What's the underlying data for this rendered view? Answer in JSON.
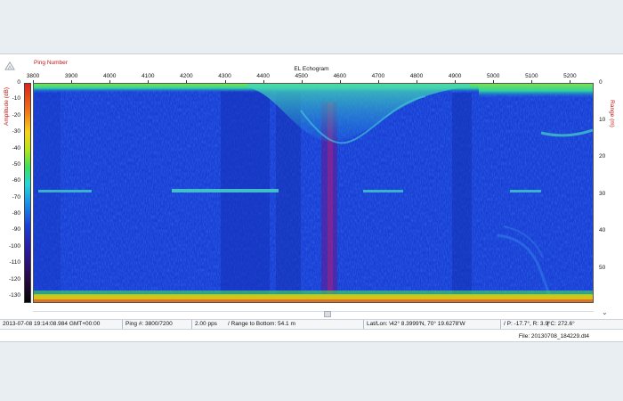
{
  "app": {
    "ping_number_label": "Ping Number",
    "title": "EL Echogram",
    "amplitude_label": "Amplitude (dB)",
    "range_label": "Range (m)",
    "logo_icon": "app-logo-icon"
  },
  "x_axis": {
    "ticks": [
      "3800",
      "3900",
      "4000",
      "4100",
      "4200",
      "4300",
      "4400",
      "4500",
      "4600",
      "4700",
      "4800",
      "4900",
      "5000",
      "5100",
      "5200"
    ]
  },
  "left_axis": {
    "ticks": [
      "0",
      "-10",
      "-20",
      "-30",
      "-40",
      "-50",
      "-60",
      "-70",
      "-80",
      "-90",
      "-100",
      "-110",
      "-120",
      "-130"
    ]
  },
  "right_axis": {
    "ticks": [
      "0",
      "10",
      "20",
      "30",
      "40",
      "50"
    ]
  },
  "colorbar": {
    "colors": [
      "#d7261e",
      "#f0701a",
      "#f7d21c",
      "#b8e51a",
      "#3fe05a",
      "#25d7d9",
      "#1a8ee8",
      "#1b3fd6",
      "#2a1aa0",
      "#2a0b4a",
      "#050505"
    ]
  },
  "echogram": {
    "background": "#1b3fd6",
    "surface_band_color": "#38d47a",
    "bottom_band_color": "#d8c21a",
    "layer_color": "#46d5c8"
  },
  "status": {
    "timestamp": "2013-07-08  19:14:08.984 GMT+00:00",
    "ping": "Ping #: 3800/7200",
    "rate": "2.00 pps",
    "range_to_bottom": "/ Range to Bottom: 54.1 m",
    "latlon": "Lat/Lon: \\42° 8.3999'N, 70° 19.6278'W",
    "attitude": "/ P: -17.7°, R: 3.9°",
    "heading": "| C: 272.6°"
  },
  "file": {
    "label": "File:  20130708_184229.dt4"
  },
  "scroll": {
    "collapse_icon": "collapse-icon"
  }
}
